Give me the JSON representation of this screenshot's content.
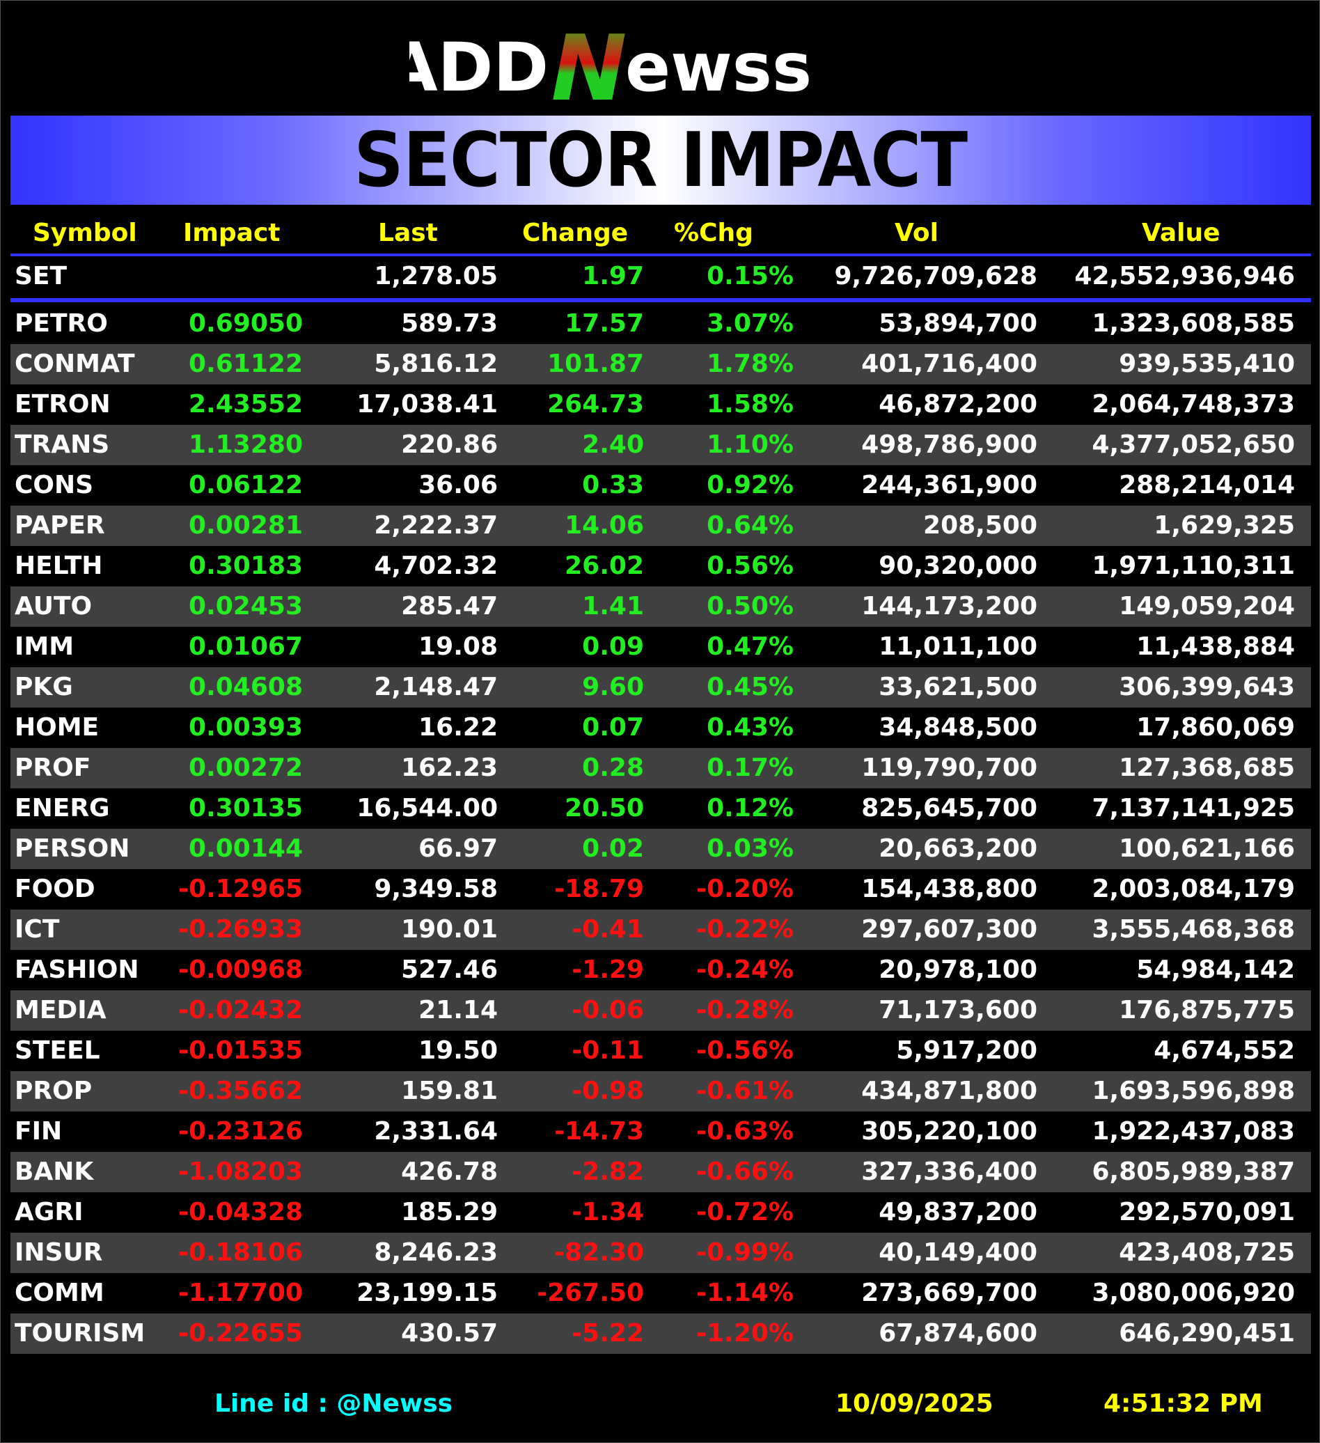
{
  "brand": {
    "logo_text": "ADDNewss",
    "logo_part_add": "ADD",
    "logo_part_n": "N",
    "logo_part_ewss": "ewss"
  },
  "banner": {
    "title": "SECTOR IMPACT"
  },
  "columns": {
    "symbol": "Symbol",
    "impact": "Impact",
    "last": "Last",
    "change": "Change",
    "pchg": "%Chg",
    "vol": "Vol",
    "value": "Value"
  },
  "index_row": {
    "symbol": "SET",
    "impact": "",
    "last": "1,278.05",
    "change": "1.97",
    "pchg": "0.15%",
    "vol": "9,726,709,628",
    "value": "42,552,936,946"
  },
  "rows": [
    {
      "symbol": "PETRO",
      "impact": "0.69050",
      "last": "589.73",
      "change": "17.57",
      "pchg": "3.07%",
      "vol": "53,894,700",
      "value": "1,323,608,585",
      "dir": "pos"
    },
    {
      "symbol": "CONMAT",
      "impact": "0.61122",
      "last": "5,816.12",
      "change": "101.87",
      "pchg": "1.78%",
      "vol": "401,716,400",
      "value": "939,535,410",
      "dir": "pos"
    },
    {
      "symbol": "ETRON",
      "impact": "2.43552",
      "last": "17,038.41",
      "change": "264.73",
      "pchg": "1.58%",
      "vol": "46,872,200",
      "value": "2,064,748,373",
      "dir": "pos"
    },
    {
      "symbol": "TRANS",
      "impact": "1.13280",
      "last": "220.86",
      "change": "2.40",
      "pchg": "1.10%",
      "vol": "498,786,900",
      "value": "4,377,052,650",
      "dir": "pos"
    },
    {
      "symbol": "CONS",
      "impact": "0.06122",
      "last": "36.06",
      "change": "0.33",
      "pchg": "0.92%",
      "vol": "244,361,900",
      "value": "288,214,014",
      "dir": "pos"
    },
    {
      "symbol": "PAPER",
      "impact": "0.00281",
      "last": "2,222.37",
      "change": "14.06",
      "pchg": "0.64%",
      "vol": "208,500",
      "value": "1,629,325",
      "dir": "pos"
    },
    {
      "symbol": "HELTH",
      "impact": "0.30183",
      "last": "4,702.32",
      "change": "26.02",
      "pchg": "0.56%",
      "vol": "90,320,000",
      "value": "1,971,110,311",
      "dir": "pos"
    },
    {
      "symbol": "AUTO",
      "impact": "0.02453",
      "last": "285.47",
      "change": "1.41",
      "pchg": "0.50%",
      "vol": "144,173,200",
      "value": "149,059,204",
      "dir": "pos"
    },
    {
      "symbol": "IMM",
      "impact": "0.01067",
      "last": "19.08",
      "change": "0.09",
      "pchg": "0.47%",
      "vol": "11,011,100",
      "value": "11,438,884",
      "dir": "pos"
    },
    {
      "symbol": "PKG",
      "impact": "0.04608",
      "last": "2,148.47",
      "change": "9.60",
      "pchg": "0.45%",
      "vol": "33,621,500",
      "value": "306,399,643",
      "dir": "pos"
    },
    {
      "symbol": "HOME",
      "impact": "0.00393",
      "last": "16.22",
      "change": "0.07",
      "pchg": "0.43%",
      "vol": "34,848,500",
      "value": "17,860,069",
      "dir": "pos"
    },
    {
      "symbol": "PROF",
      "impact": "0.00272",
      "last": "162.23",
      "change": "0.28",
      "pchg": "0.17%",
      "vol": "119,790,700",
      "value": "127,368,685",
      "dir": "pos"
    },
    {
      "symbol": "ENERG",
      "impact": "0.30135",
      "last": "16,544.00",
      "change": "20.50",
      "pchg": "0.12%",
      "vol": "825,645,700",
      "value": "7,137,141,925",
      "dir": "pos"
    },
    {
      "symbol": "PERSON",
      "impact": "0.00144",
      "last": "66.97",
      "change": "0.02",
      "pchg": "0.03%",
      "vol": "20,663,200",
      "value": "100,621,166",
      "dir": "pos"
    },
    {
      "symbol": "FOOD",
      "impact": "-0.12965",
      "last": "9,349.58",
      "change": "-18.79",
      "pchg": "-0.20%",
      "vol": "154,438,800",
      "value": "2,003,084,179",
      "dir": "neg"
    },
    {
      "symbol": "ICT",
      "impact": "-0.26933",
      "last": "190.01",
      "change": "-0.41",
      "pchg": "-0.22%",
      "vol": "297,607,300",
      "value": "3,555,468,368",
      "dir": "neg"
    },
    {
      "symbol": "FASHION",
      "impact": "-0.00968",
      "last": "527.46",
      "change": "-1.29",
      "pchg": "-0.24%",
      "vol": "20,978,100",
      "value": "54,984,142",
      "dir": "neg"
    },
    {
      "symbol": "MEDIA",
      "impact": "-0.02432",
      "last": "21.14",
      "change": "-0.06",
      "pchg": "-0.28%",
      "vol": "71,173,600",
      "value": "176,875,775",
      "dir": "neg"
    },
    {
      "symbol": "STEEL",
      "impact": "-0.01535",
      "last": "19.50",
      "change": "-0.11",
      "pchg": "-0.56%",
      "vol": "5,917,200",
      "value": "4,674,552",
      "dir": "neg"
    },
    {
      "symbol": "PROP",
      "impact": "-0.35662",
      "last": "159.81",
      "change": "-0.98",
      "pchg": "-0.61%",
      "vol": "434,871,800",
      "value": "1,693,596,898",
      "dir": "neg"
    },
    {
      "symbol": "FIN",
      "impact": "-0.23126",
      "last": "2,331.64",
      "change": "-14.73",
      "pchg": "-0.63%",
      "vol": "305,220,100",
      "value": "1,922,437,083",
      "dir": "neg"
    },
    {
      "symbol": "BANK",
      "impact": "-1.08203",
      "last": "426.78",
      "change": "-2.82",
      "pchg": "-0.66%",
      "vol": "327,336,400",
      "value": "6,805,989,387",
      "dir": "neg"
    },
    {
      "symbol": "AGRI",
      "impact": "-0.04328",
      "last": "185.29",
      "change": "-1.34",
      "pchg": "-0.72%",
      "vol": "49,837,200",
      "value": "292,570,091",
      "dir": "neg"
    },
    {
      "symbol": "INSUR",
      "impact": "-0.18106",
      "last": "8,246.23",
      "change": "-82.30",
      "pchg": "-0.99%",
      "vol": "40,149,400",
      "value": "423,408,725",
      "dir": "neg"
    },
    {
      "symbol": "COMM",
      "impact": "-1.17700",
      "last": "23,199.15",
      "change": "-267.50",
      "pchg": "-1.14%",
      "vol": "273,669,700",
      "value": "3,080,006,920",
      "dir": "neg"
    },
    {
      "symbol": "TOURISM",
      "impact": "-0.22655",
      "last": "430.57",
      "change": "-5.22",
      "pchg": "-1.20%",
      "vol": "67,874,600",
      "value": "646,290,451",
      "dir": "neg"
    }
  ],
  "footer": {
    "line_id": "Line id  : @Newss",
    "date": "10/09/2025",
    "time": "4:51:32 PM"
  },
  "colors": {
    "positive": "#22ee22",
    "negative": "#ff1010",
    "header_text": "#ffff00",
    "line_id": "#00ffff",
    "divider": "#3030ff"
  }
}
